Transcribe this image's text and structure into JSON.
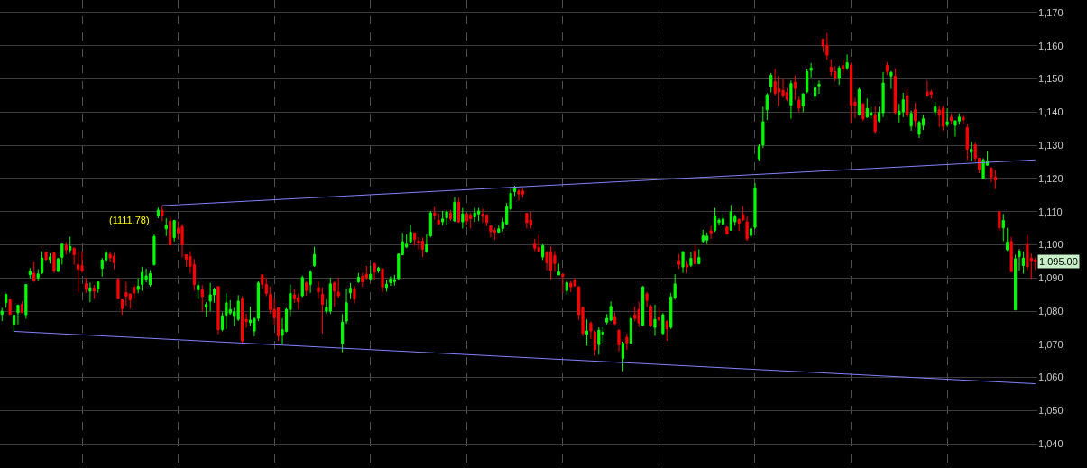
{
  "chart_data": {
    "type": "candlestick",
    "categories": [
      null,
      null,
      null,
      null,
      null,
      null,
      null,
      null,
      null,
      null,
      null,
      null,
      null,
      null,
      null,
      null,
      null,
      null,
      null,
      null,
      null,
      null,
      null,
      null,
      null,
      null,
      null,
      null,
      null,
      null,
      null,
      null,
      null,
      null,
      null,
      null,
      null,
      null,
      null,
      null,
      null,
      null,
      null,
      null,
      null,
      null,
      null,
      null,
      null,
      null,
      null,
      null,
      null,
      null,
      null,
      null,
      null,
      null,
      null,
      null,
      null,
      null,
      null,
      null,
      null,
      null,
      null,
      null,
      null,
      null,
      null,
      null,
      null,
      null,
      null,
      null,
      null,
      null,
      null,
      null,
      null,
      null,
      null,
      null,
      null,
      null,
      null,
      null,
      null,
      null,
      null,
      null,
      null,
      null,
      null,
      null,
      null,
      null,
      null,
      null,
      null,
      null,
      null,
      null,
      null,
      null,
      null,
      null,
      null,
      null,
      null,
      null,
      null,
      null,
      null,
      null,
      null,
      null,
      null,
      null,
      null,
      null,
      null,
      null,
      null,
      null,
      null,
      null,
      null,
      null,
      null,
      null,
      null,
      null,
      null,
      null,
      null,
      null,
      null,
      null,
      null,
      null,
      null,
      null,
      null,
      null,
      null,
      null,
      null,
      null,
      null,
      null,
      null,
      null,
      null,
      null,
      null,
      null,
      null,
      null,
      null,
      null,
      null,
      null,
      null,
      null,
      null,
      null,
      null,
      null,
      null,
      null,
      null,
      null,
      null,
      null,
      null,
      null,
      null,
      null,
      null,
      null,
      null,
      null,
      null,
      null,
      null,
      null,
      null,
      null,
      null,
      null,
      null,
      null,
      null,
      null,
      null,
      null,
      null,
      null,
      null,
      null,
      null,
      null,
      null,
      null,
      null,
      null,
      null,
      null,
      null,
      null,
      null,
      null,
      null,
      null,
      null,
      null,
      null,
      null,
      null,
      null,
      null,
      null,
      null,
      null,
      null,
      null,
      null,
      null,
      null,
      null,
      null,
      null,
      null,
      null,
      null,
      null,
      null,
      null,
      null,
      null,
      null,
      null,
      null,
      null,
      null,
      null,
      null,
      null,
      null,
      null,
      null,
      null,
      null,
      null,
      null,
      null,
      null
    ],
    "ohlc": [
      [
        1079,
        1081,
        1077,
        1080
      ],
      [
        1082.5,
        1085.3,
        1081,
        1085
      ],
      [
        1083.4,
        1083.4,
        1079,
        1079
      ],
      [
        1076,
        1078.8,
        1074,
        1078.8
      ],
      [
        1079.5,
        1081.8,
        1076,
        1081.8
      ],
      [
        1082,
        1083,
        1079.5,
        1079.5
      ],
      [
        1078.9,
        1088,
        1077.7,
        1088
      ],
      [
        1091,
        1093,
        1090,
        1092
      ],
      [
        1091.4,
        1095,
        1089,
        1089
      ],
      [
        1090,
        1092.6,
        1089,
        1091.2
      ],
      [
        1091.5,
        1098,
        1091.2,
        1096
      ],
      [
        1097.8,
        1097.8,
        1095.5,
        1095.5
      ],
      [
        1095.5,
        1097.4,
        1094.3,
        1096.3
      ],
      [
        1097.5,
        1097.5,
        1091.5,
        1092.2
      ],
      [
        1092,
        1096,
        1091.8,
        1095.8
      ],
      [
        1096.2,
        1100.2,
        1094,
        1100.2
      ],
      [
        1099.8,
        1100.8,
        1097,
        1098.5
      ],
      [
        1098.4,
        1102.4,
        1097.5,
        1099.5
      ],
      [
        1099,
        1099,
        1094,
        1097
      ],
      [
        1094,
        1098,
        1085.6,
        1092.6
      ],
      [
        1093.7,
        1098,
        1091.6,
        1092.2
      ],
      [
        1088.3,
        1090,
        1085.5,
        1086.5
      ],
      [
        1086,
        1088.6,
        1082.7,
        1087
      ],
      [
        1087,
        1087.9,
        1083.7,
        1086
      ],
      [
        1086.7,
        1088.8,
        1085.5,
        1088.8
      ],
      [
        1092.9,
        1096,
        1090.4,
        1095.4
      ],
      [
        1095.4,
        1098.5,
        1094.6,
        1097.5
      ],
      [
        1097.1,
        1097.8,
        1094.9,
        1096
      ],
      [
        1096.6,
        1097.5,
        1092.6,
        1094.6
      ],
      [
        1089.7,
        1089.7,
        1083.7,
        1083.7
      ],
      [
        1083.4,
        1083.4,
        1078.9,
        1080.7
      ],
      [
        1085.6,
        1088.8,
        1081.6,
        1084.5
      ],
      [
        1085.2,
        1085.2,
        1080.7,
        1083.4
      ],
      [
        1087.2,
        1088,
        1083.6,
        1085.4
      ],
      [
        1086.5,
        1089.9,
        1085.4,
        1087.5
      ],
      [
        1088,
        1093.4,
        1086.1,
        1091.7
      ],
      [
        1089.6,
        1092.8,
        1088.7,
        1090.6
      ],
      [
        1088,
        1092.4,
        1087.4,
        1091.3
      ],
      [
        1094,
        1103.1,
        1093.7,
        1102.5
      ],
      [
        1108.7,
        1111.2,
        1108,
        1110.4
      ],
      [
        1110.4,
        1111.8,
        1107.1,
        1108.7
      ],
      [
        1104.8,
        1108,
        1102.6,
        1105.9
      ],
      [
        1107.1,
        1108.4,
        1099.7,
        1100
      ],
      [
        1102.1,
        1107.5,
        1101,
        1107.3
      ],
      [
        1105,
        1107,
        1101.6,
        1103.5
      ],
      [
        1105.5,
        1106.2,
        1096.2,
        1100
      ],
      [
        1097,
        1097,
        1093.5,
        1095.6
      ],
      [
        1096.5,
        1098,
        1091.5,
        1093.5
      ],
      [
        1094,
        1095.7,
        1086.2,
        1088
      ],
      [
        1086.4,
        1088.9,
        1083.6,
        1087.7
      ],
      [
        1086.5,
        1087.8,
        1079.8,
        1084.4
      ],
      [
        1081.2,
        1082.7,
        1078.2,
        1082
      ],
      [
        1083,
        1088.5,
        1080,
        1084.9
      ],
      [
        1084.9,
        1087.1,
        1082.5,
        1086.5
      ],
      [
        1087.4,
        1087.4,
        1073,
        1074.4
      ],
      [
        1074.4,
        1079.6,
        1073.9,
        1078.6
      ],
      [
        1078.8,
        1085.4,
        1074.6,
        1082.5
      ],
      [
        1079.4,
        1083.3,
        1078.9,
        1080.5
      ],
      [
        1078.6,
        1081,
        1075.5,
        1079.8
      ],
      [
        1077.5,
        1084.8,
        1077,
        1083
      ],
      [
        1083.6,
        1084.5,
        1070.4,
        1071
      ],
      [
        1077.5,
        1079.2,
        1075,
        1076.8
      ],
      [
        1076.5,
        1081.4,
        1075.5,
        1077.3
      ],
      [
        1074,
        1078.2,
        1072.4,
        1077.7
      ],
      [
        1077.8,
        1089,
        1077,
        1088.5
      ],
      [
        1090.9,
        1091.2,
        1086.9,
        1088
      ],
      [
        1088,
        1090,
        1084.5,
        1085.3
      ],
      [
        1085,
        1087.4,
        1079.2,
        1080.5
      ],
      [
        1080.5,
        1083.7,
        1076,
        1078
      ],
      [
        1081,
        1081,
        1071,
        1072.5
      ],
      [
        1072.7,
        1077.8,
        1069.8,
        1074.4
      ],
      [
        1073.9,
        1080.9,
        1073.6,
        1080.5
      ],
      [
        1080.5,
        1088,
        1078.5,
        1085.3
      ],
      [
        1084.9,
        1086.5,
        1082.5,
        1083.7
      ],
      [
        1084.1,
        1085.3,
        1080.5,
        1082.8
      ],
      [
        1084.6,
        1090.7,
        1084.2,
        1090.1
      ],
      [
        1088.5,
        1088.9,
        1084.6,
        1086.2
      ],
      [
        1088,
        1092.4,
        1085.5,
        1091.8
      ],
      [
        1093.7,
        1099.4,
        1093.3,
        1097.1
      ],
      [
        1087.1,
        1088.9,
        1083.7,
        1085.8
      ],
      [
        1085.1,
        1087.1,
        1073.3,
        1082
      ],
      [
        1080,
        1083.5,
        1079.4,
        1081.1
      ],
      [
        1080,
        1090,
        1079.1,
        1088.2
      ],
      [
        1088.5,
        1088.9,
        1081.2,
        1086
      ],
      [
        1085.7,
        1090,
        1083.9,
        1084.6
      ],
      [
        1070.3,
        1079.1,
        1067.6,
        1076.7
      ],
      [
        1077,
        1086.9,
        1076.2,
        1082.5
      ],
      [
        1085.5,
        1088.5,
        1083.6,
        1086.9
      ],
      [
        1086.8,
        1087.6,
        1082.3,
        1083.6
      ],
      [
        1088.8,
        1091.5,
        1088.5,
        1090.2
      ],
      [
        1090.5,
        1091.5,
        1087.3,
        1088.8
      ],
      [
        1091.1,
        1093.6,
        1089.4,
        1090
      ],
      [
        1089.7,
        1093.6,
        1089.1,
        1091.1
      ],
      [
        1094.3,
        1094.6,
        1089.5,
        1091.8
      ],
      [
        1092.1,
        1093.4,
        1091.5,
        1093
      ],
      [
        1092.7,
        1093,
        1085.7,
        1087.3
      ],
      [
        1087.1,
        1089.4,
        1085.9,
        1088.1
      ],
      [
        1088.6,
        1090.5,
        1087.6,
        1089.7
      ],
      [
        1088.9,
        1090.9,
        1087.7,
        1089.5
      ],
      [
        1089.8,
        1097.4,
        1089.5,
        1097.2
      ],
      [
        1097,
        1103.6,
        1096.8,
        1100.9
      ],
      [
        1099.3,
        1103.1,
        1099,
        1100.2
      ],
      [
        1100.9,
        1106,
        1100.4,
        1103.8
      ],
      [
        1103.6,
        1103.6,
        1099.7,
        1101.5
      ],
      [
        1101.1,
        1102.2,
        1098.6,
        1100.6
      ],
      [
        1101.1,
        1102.2,
        1096.3,
        1098.6
      ],
      [
        1097.9,
        1103.1,
        1097.5,
        1100
      ],
      [
        1102.7,
        1110.2,
        1102.2,
        1109.6
      ],
      [
        1109.6,
        1111.4,
        1107.6,
        1108.9
      ],
      [
        1107.4,
        1109.5,
        1106,
        1106.3
      ],
      [
        1106.9,
        1110.2,
        1105.8,
        1107.8
      ],
      [
        1108.1,
        1110.4,
        1106,
        1109.9
      ],
      [
        1109.6,
        1110.5,
        1107.2,
        1107.8
      ],
      [
        1107.2,
        1114.4,
        1106.9,
        1112.8
      ],
      [
        1112.8,
        1114.2,
        1106.6,
        1106.9
      ],
      [
        1106.9,
        1111.1,
        1104.9,
        1109.3
      ],
      [
        1109.3,
        1109.6,
        1106,
        1107.2
      ],
      [
        1109,
        1109.6,
        1104.9,
        1107.9
      ],
      [
        1108.4,
        1111.1,
        1106.9,
        1109.6
      ],
      [
        1109.3,
        1111.1,
        1107.2,
        1110.2
      ],
      [
        1109.2,
        1110.8,
        1106.7,
        1108.6
      ],
      [
        1109,
        1109,
        1105.6,
        1106.7
      ],
      [
        1105.7,
        1105.8,
        1102.2,
        1104
      ],
      [
        1104.3,
        1105.1,
        1101.5,
        1103.8
      ],
      [
        1103.8,
        1105.8,
        1103.6,
        1104.8
      ],
      [
        1104.9,
        1108.1,
        1104,
        1106.9
      ],
      [
        1106.3,
        1112.6,
        1106,
        1111.4
      ],
      [
        1110.8,
        1116.9,
        1110.4,
        1115.5
      ],
      [
        1116,
        1117.8,
        1114.7,
        1117.1
      ],
      [
        1116.2,
        1116.7,
        1113.3,
        1115.3
      ],
      [
        1116.2,
        1117.1,
        1114.2,
        1115.3
      ],
      [
        1109.5,
        1109.6,
        1104.9,
        1106.7
      ],
      [
        1107.4,
        1109.9,
        1104.9,
        1106
      ],
      [
        1100.2,
        1101.8,
        1098.1,
        1099
      ],
      [
        1099.2,
        1102.9,
        1097.7,
        1097.9
      ],
      [
        1096.3,
        1100.2,
        1095.4,
        1099.7
      ],
      [
        1097.7,
        1098.1,
        1092.3,
        1094.5
      ],
      [
        1097.9,
        1099.5,
        1089.5,
        1092.3
      ],
      [
        1096.8,
        1098.1,
        1091.8,
        1094.3
      ],
      [
        1090.9,
        1094.3,
        1090.9,
        1091.8
      ],
      [
        1091.1,
        1091.5,
        1085.5,
        1090.5
      ],
      [
        1086.2,
        1089.1,
        1085,
        1088.6
      ],
      [
        1088.4,
        1089.1,
        1085.7,
        1087.3
      ],
      [
        1089.4,
        1090,
        1087.3,
        1087.6
      ],
      [
        1087.3,
        1087.6,
        1077.3,
        1078.9
      ],
      [
        1081.1,
        1081.4,
        1072.5,
        1073.3
      ],
      [
        1073,
        1077.5,
        1069.6,
        1074
      ],
      [
        1076.4,
        1076.9,
        1071.6,
        1074
      ],
      [
        1073.7,
        1074.2,
        1066.5,
        1068.3
      ],
      [
        1069.9,
        1075.1,
        1066.9,
        1074.2
      ],
      [
        1073,
        1075.1,
        1070.5,
        1073.7
      ],
      [
        1076.7,
        1079.1,
        1076,
        1077.8
      ],
      [
        1077.3,
        1082.9,
        1076.9,
        1081.4
      ],
      [
        1078.4,
        1079.6,
        1075.8,
        1076.2
      ],
      [
        1074.2,
        1074.6,
        1067.8,
        1069.8
      ],
      [
        1065.7,
        1070.8,
        1061.9,
        1070.3
      ],
      [
        1072.1,
        1073.3,
        1068.3,
        1070.4
      ],
      [
        1070.3,
        1078.9,
        1070.1,
        1077.8
      ],
      [
        1078.9,
        1081.4,
        1076.9,
        1077.8
      ],
      [
        1080.5,
        1082.8,
        1075.1,
        1076.4
      ],
      [
        1075.7,
        1087.6,
        1075.5,
        1087.3
      ],
      [
        1085.2,
        1085.7,
        1081.2,
        1083.2
      ],
      [
        1081.4,
        1081.9,
        1075.2,
        1075.8
      ],
      [
        1075.1,
        1081.9,
        1072.5,
        1077.5
      ],
      [
        1078,
        1081,
        1075.1,
        1077.3
      ],
      [
        1073.3,
        1079.4,
        1072.8,
        1078.9
      ],
      [
        1076.9,
        1077.3,
        1071,
        1074.6
      ],
      [
        1075.1,
        1085.5,
        1074.6,
        1084.3
      ],
      [
        1084,
        1091.1,
        1083.4,
        1088.2
      ],
      [
        1095.2,
        1097.2,
        1092.7,
        1094.1
      ],
      [
        1093.3,
        1098.1,
        1091.5,
        1097.9
      ],
      [
        1094.1,
        1095.2,
        1091.4,
        1093.3
      ],
      [
        1093.8,
        1097.9,
        1093.3,
        1095.9
      ],
      [
        1098.1,
        1100,
        1094.1,
        1094.3
      ],
      [
        1094.3,
        1098.6,
        1094.1,
        1096.2
      ],
      [
        1101.1,
        1104.5,
        1100.6,
        1102.7
      ],
      [
        1101.4,
        1103.7,
        1100.2,
        1102.6
      ],
      [
        1104.2,
        1105.7,
        1101.8,
        1103.5
      ],
      [
        1104.4,
        1111.1,
        1103.9,
        1108.6
      ],
      [
        1106.7,
        1108,
        1105.8,
        1107.4
      ],
      [
        1106.2,
        1109.3,
        1106,
        1107.8
      ],
      [
        1105.3,
        1105.7,
        1103,
        1103.3
      ],
      [
        1104.4,
        1112,
        1104.2,
        1110
      ],
      [
        1106.9,
        1109.1,
        1105.7,
        1108.4
      ],
      [
        1107.6,
        1108,
        1104.1,
        1106.5
      ],
      [
        1109.1,
        1111.6,
        1107.1,
        1107.5
      ],
      [
        1106.9,
        1108.5,
        1101.1,
        1101.8
      ],
      [
        1102.8,
        1105.4,
        1102.1,
        1104.8
      ],
      [
        1105.3,
        1118.6,
        1104.8,
        1117.2
      ],
      [
        1125.9,
        1130.3,
        1125.3,
        1129.6
      ],
      [
        1130.1,
        1141.6,
        1129.2,
        1137.1
      ],
      [
        1140.7,
        1145.7,
        1137.6,
        1145.2
      ],
      [
        1147.7,
        1151.8,
        1145.9,
        1151.1
      ],
      [
        1149.2,
        1153,
        1145,
        1145.7
      ],
      [
        1147,
        1150.9,
        1141.8,
        1146.1
      ],
      [
        1146.5,
        1150,
        1144.3,
        1145
      ],
      [
        1145.9,
        1147.3,
        1143.2,
        1143.8
      ],
      [
        1142.1,
        1149.5,
        1138,
        1148.6
      ],
      [
        1149,
        1151.1,
        1143.6,
        1147.1
      ],
      [
        1143.6,
        1144.8,
        1140,
        1141.2
      ],
      [
        1141.8,
        1145.7,
        1140,
        1145.5
      ],
      [
        1146.1,
        1153.1,
        1145.7,
        1152.2
      ],
      [
        1152.6,
        1154.8,
        1150.4,
        1153.3
      ],
      [
        1144.8,
        1149,
        1143.6,
        1147.4
      ],
      [
        1147.9,
        1149.5,
        1145.5,
        1148.4
      ],
      [
        1162,
        1162,
        1158.1,
        1159.9
      ],
      [
        1160.1,
        1163.8,
        1155.7,
        1157.2
      ],
      [
        1153.6,
        1156,
        1150.9,
        1152.2
      ],
      [
        1152.2,
        1153.9,
        1149.3,
        1150.2
      ],
      [
        1150.2,
        1154,
        1148.2,
        1153.3
      ],
      [
        1154,
        1155.8,
        1151.8,
        1153
      ],
      [
        1153.3,
        1157.4,
        1152.7,
        1154.9
      ],
      [
        1154.2,
        1154.9,
        1136.7,
        1142.1
      ],
      [
        1143,
        1144.3,
        1138.2,
        1142
      ],
      [
        1139.1,
        1147.3,
        1138.9,
        1146.8
      ],
      [
        1142.5,
        1142.7,
        1137.3,
        1138
      ],
      [
        1138.5,
        1144.1,
        1138.2,
        1141.1
      ],
      [
        1139,
        1141.6,
        1137.8,
        1139.8
      ],
      [
        1139.3,
        1141.8,
        1133.4,
        1134.2
      ],
      [
        1137.3,
        1141.6,
        1136.9,
        1140
      ],
      [
        1139.8,
        1152.1,
        1138.5,
        1148.8
      ],
      [
        1154.1,
        1155,
        1151.2,
        1152.3
      ],
      [
        1150.9,
        1152.4,
        1147,
        1152
      ],
      [
        1150.9,
        1153.2,
        1139.4,
        1139.8
      ],
      [
        1139.1,
        1142.5,
        1136.9,
        1140.3
      ],
      [
        1140.1,
        1145.8,
        1138.5,
        1143.7
      ],
      [
        1145,
        1146.8,
        1138.5,
        1139
      ],
      [
        1135.8,
        1140.5,
        1134.4,
        1139.6
      ],
      [
        1140.7,
        1142.8,
        1135.5,
        1137.4
      ],
      [
        1133.3,
        1137.4,
        1132.2,
        1136.9
      ],
      [
        1136,
        1139.2,
        1134.6,
        1138
      ],
      [
        1146.1,
        1149.5,
        1144.6,
        1144.9
      ],
      [
        1146.1,
        1146.7,
        1144.1,
        1145.4
      ],
      [
        1140.1,
        1143,
        1138.9,
        1141.6
      ],
      [
        1140.7,
        1141.9,
        1135.5,
        1139
      ],
      [
        1141.2,
        1141.9,
        1134.4,
        1135.7
      ],
      [
        1136.2,
        1141.2,
        1135.5,
        1137.1
      ],
      [
        1138.5,
        1139.6,
        1136.4,
        1137.4
      ],
      [
        1136,
        1137.4,
        1132.6,
        1137.4
      ],
      [
        1137.3,
        1139.6,
        1136.2,
        1138.5
      ],
      [
        1138.5,
        1139.2,
        1136.4,
        1137.6
      ],
      [
        1135.3,
        1136.5,
        1125.6,
        1128.8
      ],
      [
        1127.9,
        1131,
        1125.2,
        1128.8
      ],
      [
        1130.1,
        1130.8,
        1125,
        1126.1
      ],
      [
        1126.1,
        1126.1,
        1121.6,
        1122.7
      ],
      [
        1120,
        1126.1,
        1119.7,
        1125.6
      ],
      [
        1124,
        1128.1,
        1123.8,
        1125.2
      ],
      [
        1123.1,
        1123.4,
        1118.8,
        1120.4
      ],
      [
        1120.4,
        1122.5,
        1116.8,
        1119.5
      ],
      [
        1110,
        1110,
        1104.2,
        1105.1
      ],
      [
        1105.1,
        1109.3,
        1101.1,
        1107.3
      ],
      [
        1098.5,
        1105.1,
        1098.1,
        1100.8
      ],
      [
        1101,
        1102.4,
        1091.9,
        1091.9
      ],
      [
        1080.4,
        1097,
        1080.2,
        1095.8
      ],
      [
        1096.4,
        1098.7,
        1092.2,
        1098.1
      ],
      [
        1093.7,
        1098,
        1091.3,
        1096
      ],
      [
        1100.1,
        1102.9,
        1092.2,
        1093.3
      ],
      [
        1096,
        1097.4,
        1089.7,
        1095.2
      ],
      [
        1095.4,
        1096.2,
        1092.5,
        1095
      ]
    ],
    "colors": [
      "#00ff00",
      "#00ff00",
      "#ff0000",
      "#00ff00",
      "#00ff00",
      "#ff0000",
      "#00ff00",
      "#00ff00",
      "#ff0000",
      "#00ff00",
      "#00ff00",
      "#ff0000",
      "#00ff00",
      "#ff0000",
      "#00ff00",
      "#00ff00",
      "#ff0000",
      "#00ff00",
      "#ff0000",
      "#ff0000",
      "#ff0000",
      "#ff0000",
      "#00ff00",
      "#ff0000",
      "#00ff00",
      "#00ff00",
      "#00ff00",
      "#ff0000",
      "#ff0000",
      "#ff0000",
      "#ff0000",
      "#ff0000",
      "#ff0000",
      "#ff0000",
      "#00ff00",
      "#00ff00",
      "#00ff00",
      "#00ff00",
      "#00ff00",
      "#00ff00",
      "#ff0000",
      "#00ff00",
      "#ff0000",
      "#00ff00",
      "#ff0000",
      "#ff0000",
      "#ff0000",
      "#ff0000",
      "#ff0000",
      "#00ff00",
      "#ff0000",
      "#00ff00",
      "#00ff00",
      "#00ff00",
      "#ff0000",
      "#00ff00",
      "#00ff00",
      "#00ff00",
      "#00ff00",
      "#00ff00",
      "#ff0000",
      "#ff0000",
      "#00ff00",
      "#00ff00",
      "#00ff00",
      "#ff0000",
      "#ff0000",
      "#ff0000",
      "#ff0000",
      "#ff0000",
      "#00ff00",
      "#00ff00",
      "#00ff00",
      "#ff0000",
      "#ff0000",
      "#00ff00",
      "#ff0000",
      "#00ff00",
      "#00ff00",
      "#ff0000",
      "#ff0000",
      "#00ff00",
      "#00ff00",
      "#ff0000",
      "#ff0000",
      "#00ff00",
      "#00ff00",
      "#00ff00",
      "#ff0000",
      "#00ff00",
      "#ff0000",
      "#ff0000",
      "#00ff00",
      "#ff0000",
      "#00ff00",
      "#ff0000",
      "#00ff00",
      "#00ff00",
      "#00ff00",
      "#00ff00",
      "#00ff00",
      "#00ff00",
      "#00ff00",
      "#ff0000",
      "#ff0000",
      "#ff0000",
      "#00ff00",
      "#00ff00",
      "#ff0000",
      "#ff0000",
      "#00ff00",
      "#00ff00",
      "#ff0000",
      "#00ff00",
      "#ff0000",
      "#00ff00",
      "#ff0000",
      "#ff0000",
      "#00ff00",
      "#00ff00",
      "#ff0000",
      "#ff0000",
      "#ff0000",
      "#ff0000",
      "#00ff00",
      "#00ff00",
      "#00ff00",
      "#00ff00",
      "#00ff00",
      "#ff0000",
      "#ff0000",
      "#ff0000",
      "#ff0000",
      "#ff0000",
      "#ff0000",
      "#00ff00",
      "#ff0000",
      "#ff0000",
      "#ff0000",
      "#00ff00",
      "#ff0000",
      "#00ff00",
      "#ff0000",
      "#ff0000",
      "#ff0000",
      "#ff0000",
      "#00ff00",
      "#ff0000",
      "#ff0000",
      "#00ff00",
      "#00ff00",
      "#00ff00",
      "#00ff00",
      "#ff0000",
      "#ff0000",
      "#00ff00",
      "#ff0000",
      "#00ff00",
      "#ff0000",
      "#ff0000",
      "#00ff00",
      "#ff0000",
      "#ff0000",
      "#00ff00",
      "#ff0000",
      "#00ff00",
      "#ff0000",
      "#00ff00",
      "#00ff00",
      "#ff0000",
      "#00ff00",
      "#ff0000",
      "#00ff00",
      "#ff0000",
      "#00ff00",
      "#00ff00",
      "#00ff00",
      "#ff0000",
      "#00ff00",
      "#00ff00",
      "#00ff00",
      "#ff0000",
      "#00ff00",
      "#00ff00",
      "#ff0000",
      "#ff0000",
      "#ff0000",
      "#00ff00",
      "#00ff00",
      "#00ff00",
      "#00ff00",
      "#00ff00",
      "#00ff00",
      "#ff0000",
      "#ff0000",
      "#ff0000",
      "#ff0000",
      "#00ff00",
      "#ff0000",
      "#ff0000",
      "#00ff00",
      "#00ff00",
      "#00ff00",
      "#00ff00",
      "#00ff00",
      "#ff0000",
      "#ff0000",
      "#ff0000",
      "#ff0000",
      "#00ff00",
      "#ff0000",
      "#00ff00",
      "#ff0000",
      "#ff0000",
      "#00ff00",
      "#ff0000",
      "#00ff00",
      "#00ff00",
      "#ff0000",
      "#00ff00",
      "#00ff00",
      "#ff0000",
      "#00ff00",
      "#ff0000",
      "#00ff00",
      "#00ff00",
      "#ff0000",
      "#00ff00",
      "#ff0000",
      "#00ff00",
      "#00ff00",
      "#ff0000",
      "#ff0000",
      "#00ff00",
      "#ff0000",
      "#ff0000",
      "#00ff00",
      "#ff0000",
      "#00ff00",
      "#00ff00",
      "#ff0000",
      "#ff0000",
      "#00ff00",
      "#ff0000",
      "#ff0000",
      "#00ff00",
      "#00ff00",
      "#ff0000",
      "#ff0000",
      "#ff0000",
      "#00ff00",
      "#00ff00",
      "#ff0000",
      "#00ff00",
      "#00ff00",
      "#00ff00",
      "#ff0000",
      "#ff0000",
      "#ff0000"
    ],
    "series": [
      {
        "type": "line",
        "color": "#8080ff",
        "values": [
          null,
          null,
          null,
          null,
          null,
          null,
          null,
          null,
          null,
          null,
          null,
          null,
          null,
          null,
          null,
          null,
          null,
          null,
          null,
          null,
          null,
          null,
          null,
          null,
          null,
          null,
          null,
          null,
          null,
          null,
          null,
          null,
          null,
          null,
          null,
          null,
          null,
          null,
          null,
          null,
          1111.8,
          null,
          null,
          null,
          null,
          null,
          null,
          null,
          null,
          null,
          null,
          null,
          null,
          null,
          null,
          null,
          null,
          null,
          null,
          null,
          null,
          null,
          null,
          null,
          null,
          null,
          null,
          null,
          null,
          null,
          null,
          null,
          null,
          null,
          null,
          null,
          null,
          null,
          null,
          null,
          null,
          null,
          null,
          null,
          null,
          null,
          null,
          null,
          null,
          null,
          null,
          null,
          null,
          null,
          null,
          null,
          null,
          null,
          null,
          null,
          null,
          null,
          null,
          null,
          null,
          null,
          null,
          null,
          null,
          null,
          null,
          null,
          null,
          null,
          null,
          null,
          null,
          null,
          null,
          null,
          null,
          null,
          null,
          null,
          null,
          null,
          null,
          null,
          null,
          null,
          null,
          null,
          null,
          null,
          null,
          null,
          null,
          null,
          null,
          null,
          null,
          null,
          null,
          null,
          null,
          null,
          null,
          null,
          null,
          null,
          null,
          null,
          null,
          null,
          null,
          null,
          null,
          null,
          null,
          null,
          null,
          null,
          null,
          null,
          null,
          null,
          null,
          null,
          null,
          null,
          null,
          null,
          null,
          null,
          null,
          null,
          null,
          null,
          null,
          null,
          null,
          null,
          null,
          null,
          null,
          null,
          null,
          null,
          null,
          null,
          null,
          null,
          null,
          null,
          null,
          null,
          null,
          null,
          null,
          null,
          null,
          null,
          null,
          null,
          null,
          null,
          null,
          null,
          null,
          null,
          null,
          null,
          null,
          null,
          null,
          null,
          null,
          null,
          null,
          null,
          null,
          null,
          null,
          null,
          null,
          null,
          null,
          null,
          null,
          null,
          null,
          null,
          null,
          null,
          null,
          null,
          null,
          null,
          null,
          null,
          null,
          null,
          null,
          null,
          null,
          null,
          null,
          null,
          null,
          null,
          null,
          null,
          null,
          null,
          null,
          null,
          null,
          null,
          1125.6
        ]
      },
      {
        "type": "line",
        "color": "#8080ff",
        "values": [
          null,
          null,
          null,
          1073.9,
          null,
          null,
          null,
          null,
          null,
          null,
          null,
          null,
          null,
          null,
          null,
          null,
          null,
          null,
          null,
          null,
          null,
          null,
          null,
          null,
          null,
          null,
          null,
          null,
          null,
          null,
          null,
          null,
          null,
          null,
          null,
          null,
          null,
          null,
          null,
          null,
          null,
          null,
          null,
          null,
          null,
          null,
          null,
          null,
          null,
          null,
          null,
          null,
          null,
          null,
          null,
          null,
          null,
          null,
          null,
          null,
          null,
          null,
          null,
          null,
          null,
          null,
          null,
          null,
          null,
          null,
          null,
          null,
          null,
          null,
          null,
          null,
          null,
          null,
          null,
          null,
          null,
          null,
          null,
          null,
          null,
          null,
          null,
          null,
          null,
          null,
          null,
          null,
          null,
          null,
          null,
          null,
          null,
          null,
          null,
          null,
          null,
          null,
          null,
          null,
          null,
          null,
          null,
          null,
          null,
          null,
          null,
          null,
          null,
          null,
          null,
          null,
          null,
          null,
          null,
          null,
          null,
          null,
          null,
          null,
          null,
          null,
          null,
          null,
          null,
          null,
          null,
          null,
          null,
          null,
          null,
          null,
          null,
          null,
          null,
          null,
          null,
          null,
          null,
          null,
          null,
          null,
          null,
          null,
          null,
          null,
          null,
          null,
          null,
          null,
          null,
          null,
          null,
          null,
          null,
          null,
          null,
          null,
          null,
          null,
          null,
          null,
          null,
          null,
          null,
          null,
          null,
          null,
          null,
          null,
          null,
          null,
          null,
          null,
          null,
          null,
          null,
          null,
          null,
          null,
          null,
          null,
          null,
          null,
          null,
          null,
          null,
          null,
          null,
          null,
          null,
          null,
          null,
          null,
          null,
          null,
          null,
          null,
          null,
          null,
          null,
          null,
          null,
          null,
          null,
          null,
          null,
          null,
          null,
          null,
          null,
          null,
          null,
          null,
          null,
          null,
          null,
          null,
          null,
          null,
          null,
          null,
          null,
          null,
          null,
          null,
          null,
          null,
          null,
          null,
          null,
          null,
          null,
          null,
          null,
          null,
          null,
          null,
          null,
          null,
          null,
          null,
          null,
          null,
          null,
          null,
          null,
          null,
          null,
          null,
          null,
          null,
          null,
          null,
          1058.1
        ]
      }
    ],
    "annotations": [
      "(1111.78)",
      "1,095.00"
    ],
    "ylim": [
      1032.7,
      1173.8
    ],
    "yticks": [
      {
        "value": 1040,
        "label": "1,040"
      },
      {
        "value": 1050,
        "label": "1,050"
      },
      {
        "value": 1060,
        "label": "1,060"
      },
      {
        "value": 1070,
        "label": "1,070"
      },
      {
        "value": 1080,
        "label": "1,080"
      },
      {
        "value": 1090,
        "label": "1,090"
      },
      {
        "value": 1100,
        "label": "1,100"
      },
      {
        "value": 1110,
        "label": "1,110"
      },
      {
        "value": 1120,
        "label": "1,120"
      },
      {
        "value": 1130,
        "label": "1,130"
      },
      {
        "value": 1140,
        "label": "1,140"
      },
      {
        "value": 1150,
        "label": "1,150"
      },
      {
        "value": 1160,
        "label": "1,160"
      },
      {
        "value": 1170,
        "label": "1,170"
      }
    ],
    "grid": true,
    "tick_labels": "y"
  }
}
